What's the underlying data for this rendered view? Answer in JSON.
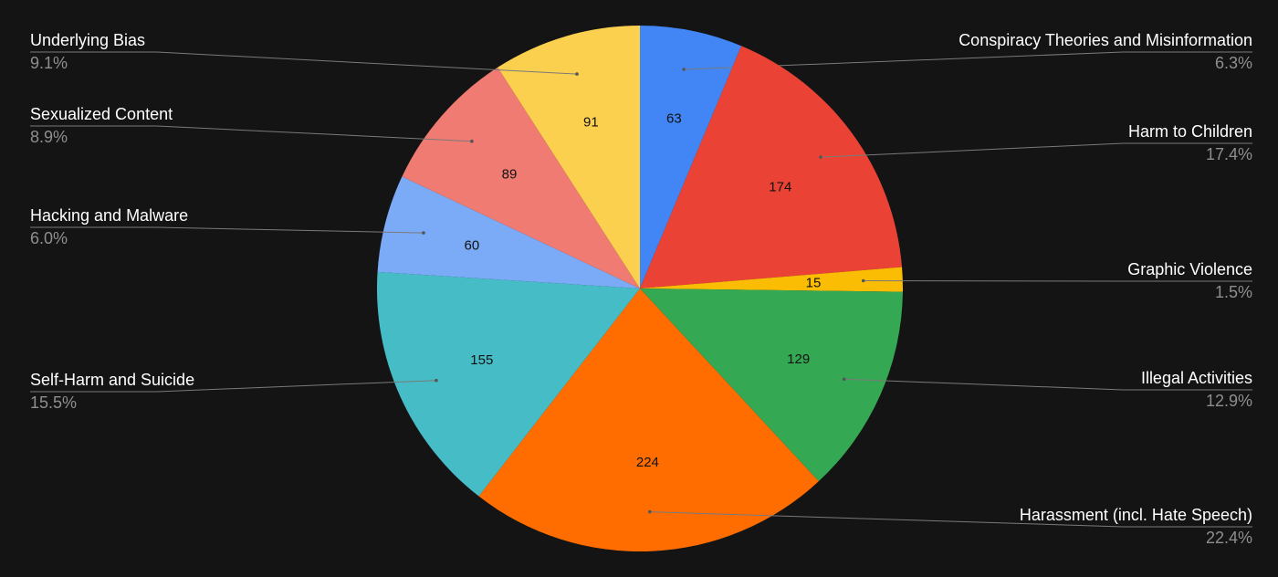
{
  "chart_data": {
    "type": "pie",
    "title": "",
    "start_angle_deg": 0,
    "direction": "clockwise",
    "slices": [
      {
        "label": "Conspiracy Theories and Misinformation",
        "value": 63,
        "percent": "6.3%",
        "color": "#4285f4",
        "side": "right"
      },
      {
        "label": "Harm to Children",
        "value": 174,
        "percent": "17.4%",
        "color": "#ea4335",
        "side": "right"
      },
      {
        "label": "Graphic Violence",
        "value": 15,
        "percent": "1.5%",
        "color": "#fbbc04",
        "side": "right"
      },
      {
        "label": "Illegal Activities",
        "value": 129,
        "percent": "12.9%",
        "color": "#34a853",
        "side": "right"
      },
      {
        "label": "Harassment (incl. Hate Speech)",
        "value": 224,
        "percent": "22.4%",
        "color": "#ff6d01",
        "side": "right"
      },
      {
        "label": "Self-Harm and Suicide",
        "value": 155,
        "percent": "15.5%",
        "color": "#46bdc6",
        "side": "left"
      },
      {
        "label": "Hacking and Malware",
        "value": 60,
        "percent": "6.0%",
        "color": "#7baaf7",
        "side": "left"
      },
      {
        "label": "Sexualized Content",
        "value": 89,
        "percent": "8.9%",
        "color": "#f07b72",
        "side": "left"
      },
      {
        "label": "Underlying Bias",
        "value": 91,
        "percent": "9.1%",
        "color": "#fcd04f",
        "side": "left"
      }
    ],
    "legend": "none",
    "colors": {
      "background": "#141414",
      "label_text": "#ffffff",
      "percent_text": "#8f8f8f",
      "leader_line": "#7a7a7a"
    }
  }
}
